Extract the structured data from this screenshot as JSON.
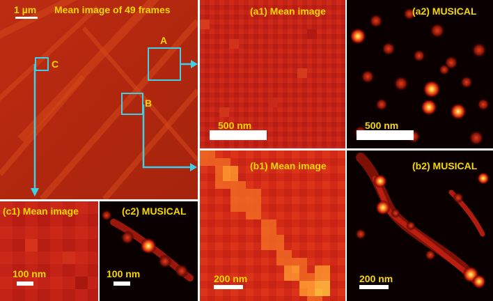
{
  "colors": {
    "label": "#f5d800",
    "roi": "#3fd0e8",
    "scalebar": "#ffffff",
    "divider": "#ffffff"
  },
  "main": {
    "title": "Mean image of 49 frames",
    "scalebar_label": "1 µm",
    "roi_labels": {
      "a": "A",
      "b": "B",
      "c": "C"
    }
  },
  "a1": {
    "label": "(a1) Mean image",
    "scalebar_label": "500 nm"
  },
  "a2": {
    "label": "(a2) MUSICAL",
    "scalebar_label": "500 nm"
  },
  "b1": {
    "label": "(b1) Mean image",
    "scalebar_label": "200 nm"
  },
  "b2": {
    "label": "(b2) MUSICAL",
    "scalebar_label": "200 nm"
  },
  "c1": {
    "label": "(c1) Mean image",
    "scalebar_label": "100 nm"
  },
  "c2": {
    "label": "(c2) MUSICAL",
    "scalebar_label": "100 nm"
  }
}
